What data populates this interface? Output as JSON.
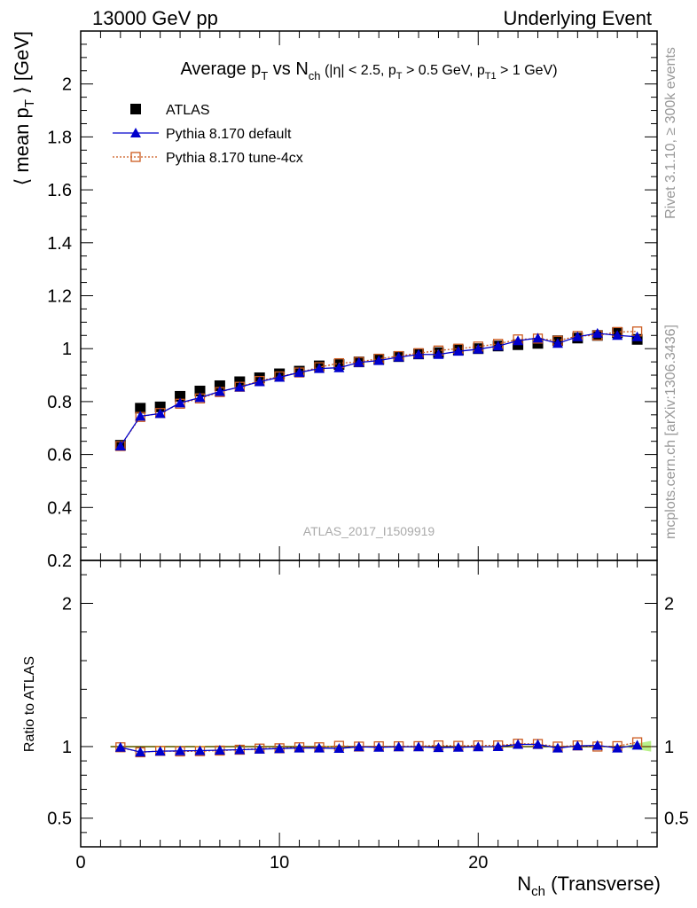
{
  "header": {
    "left": "13000 GeV pp",
    "right": "Underlying Event"
  },
  "side_labels": {
    "rivet": "Rivet 3.1.10, ≥ 300k events",
    "mcplots": "mcplots.cern.ch [arXiv:1306.3436]"
  },
  "watermark": "ATLAS_2017_I1509919",
  "colors": {
    "atlas": "#000000",
    "default": "#0000cc",
    "tune": "#cc5a1e",
    "band_inner": "#ffff66",
    "band_outer": "#b8f08a"
  },
  "chart_data": [
    {
      "type": "scatter",
      "panel": "main",
      "title": {
        "t1": "Average p",
        "t1s": "T",
        "t2": " vs N",
        "t2s": "ch",
        "t3": " (|η| < 2.5, p",
        "t3s": "T",
        "t4": " > 0.5 GeV, p",
        "t4s": "T1",
        "t5": " > 1 GeV)"
      },
      "ylabel": {
        "a": "⟨ mean p",
        "sub": "T",
        "b": " ⟩ [GeV]"
      },
      "xlim": [
        0,
        29
      ],
      "ylim": [
        0.2,
        2.2
      ],
      "yticks": [
        0.2,
        0.4,
        0.6,
        0.8,
        1,
        1.2,
        1.4,
        1.6,
        1.8,
        2
      ],
      "ytick_labels": [
        "0.2",
        "0.4",
        "0.6",
        "0.8",
        "1",
        "1.2",
        "1.4",
        "1.6",
        "1.8",
        "2"
      ],
      "legend_position": "top-left",
      "legend": [
        "ATLAS",
        "Pythia 8.170 default",
        "Pythia 8.170 tune-4cx"
      ],
      "x": [
        2,
        3,
        4,
        5,
        6,
        7,
        8,
        9,
        10,
        11,
        12,
        13,
        14,
        15,
        16,
        17,
        18,
        19,
        20,
        21,
        22,
        23,
        24,
        25,
        26,
        27,
        28
      ],
      "series": [
        {
          "name": "ATLAS",
          "values": [
            0.635,
            0.775,
            0.78,
            0.82,
            0.84,
            0.86,
            0.875,
            0.89,
            0.905,
            0.915,
            0.935,
            0.94,
            0.95,
            0.96,
            0.97,
            0.98,
            0.985,
            0.995,
            1.0,
            1.01,
            1.015,
            1.02,
            1.03,
            1.04,
            1.05,
            1.06,
            1.035
          ]
        },
        {
          "name": "Pythia 8.170 default",
          "values": [
            0.632,
            0.745,
            0.755,
            0.795,
            0.815,
            0.838,
            0.855,
            0.875,
            0.892,
            0.91,
            0.925,
            0.928,
            0.948,
            0.955,
            0.968,
            0.978,
            0.978,
            0.99,
            0.998,
            1.01,
            1.03,
            1.04,
            1.02,
            1.045,
            1.058,
            1.05,
            1.045
          ]
        },
        {
          "name": "Pythia 8.170 tune-4cx",
          "values": [
            0.632,
            0.742,
            0.757,
            0.792,
            0.812,
            0.836,
            0.856,
            0.878,
            0.895,
            0.91,
            0.93,
            0.945,
            0.95,
            0.962,
            0.972,
            0.983,
            0.993,
            1.0,
            1.008,
            1.018,
            1.035,
            1.038,
            1.03,
            1.048,
            1.05,
            1.063,
            1.065
          ]
        }
      ]
    },
    {
      "type": "scatter",
      "panel": "ratio",
      "ylabel": "Ratio to ATLAS",
      "xlabel": {
        "a": "N",
        "sub": "ch",
        "b": " (Transverse)"
      },
      "xlim": [
        0,
        29
      ],
      "ylim": [
        0.3,
        2.3
      ],
      "xticks": [
        0,
        10,
        20
      ],
      "xtick_labels": [
        "0",
        "10",
        "20"
      ],
      "yticks": [
        0.5,
        1,
        2
      ],
      "ytick_labels": [
        "0.5",
        "1",
        "2"
      ],
      "x": [
        2,
        3,
        4,
        5,
        6,
        7,
        8,
        9,
        10,
        11,
        12,
        13,
        14,
        15,
        16,
        17,
        18,
        19,
        20,
        21,
        22,
        23,
        24,
        25,
        26,
        27,
        28
      ],
      "series": [
        {
          "name": "Pythia 8.170 default",
          "values": [
            0.995,
            0.962,
            0.968,
            0.97,
            0.972,
            0.975,
            0.978,
            0.982,
            0.986,
            0.99,
            0.99,
            0.987,
            0.998,
            0.995,
            0.998,
            0.998,
            0.993,
            0.995,
            0.998,
            1.0,
            1.015,
            1.015,
            0.99,
            1.005,
            1.008,
            0.99,
            1.01
          ]
        },
        {
          "name": "Pythia 8.170 tune-4cx",
          "values": [
            0.995,
            0.96,
            0.97,
            0.966,
            0.968,
            0.972,
            0.978,
            0.986,
            0.988,
            0.995,
            0.995,
            1.005,
            1.0,
            1.002,
            1.002,
            1.003,
            1.008,
            1.005,
            1.008,
            1.008,
            1.02,
            1.018,
            1.0,
            1.008,
            1.0,
            1.003,
            1.03
          ]
        }
      ]
    }
  ]
}
